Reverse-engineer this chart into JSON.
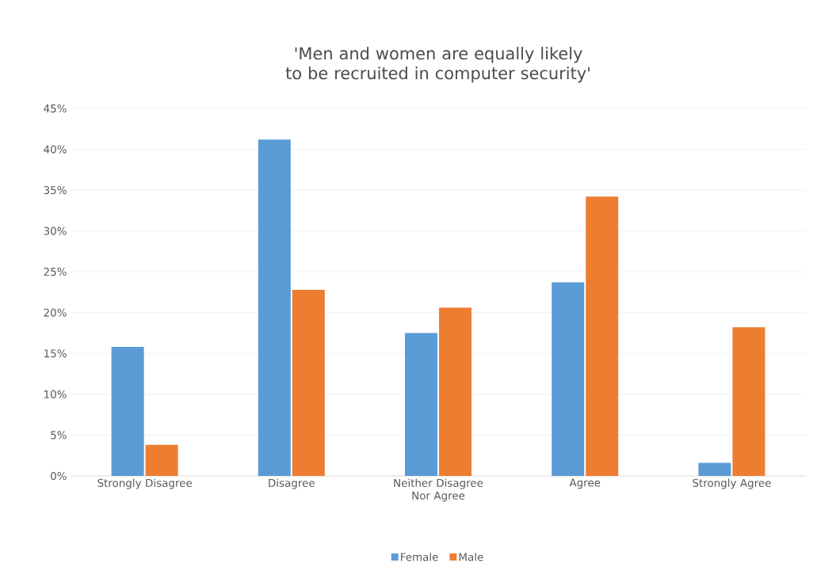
{
  "chart_data": {
    "type": "bar",
    "title": "'Men and women are equally likely to be recruited in computer security'",
    "categories": [
      "Strongly Disagree",
      "Disagree",
      "Neither Disagree Nor Agree",
      "Agree",
      "Strongly Agree"
    ],
    "series": [
      {
        "name": "Female",
        "color": "#5b9bd5",
        "values": [
          15.8,
          41.2,
          17.5,
          23.7,
          1.6
        ]
      },
      {
        "name": "Male",
        "color": "#ed7d31",
        "values": [
          3.8,
          22.8,
          20.6,
          34.2,
          18.2
        ]
      }
    ],
    "ylim": [
      0,
      45
    ],
    "yticks": [
      {
        "value": 0,
        "label": "0%"
      },
      {
        "value": 5,
        "label": "5%"
      },
      {
        "value": 10,
        "label": "10%"
      },
      {
        "value": 15,
        "label": "15%"
      },
      {
        "value": 20,
        "label": "20%"
      },
      {
        "value": 25,
        "label": "25%"
      },
      {
        "value": 30,
        "label": "30%"
      },
      {
        "value": 35,
        "label": "35%"
      },
      {
        "value": 40,
        "label": "40%"
      },
      {
        "value": 45,
        "label": "45%"
      }
    ],
    "grid": "y",
    "legend": "bottom"
  }
}
